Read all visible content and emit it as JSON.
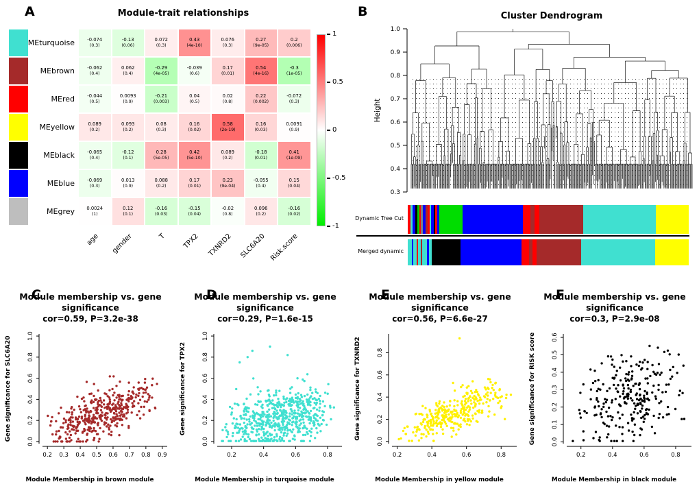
{
  "chart_data": [
    {
      "type": "heatmap",
      "panel": "A",
      "title": "Module-trait relationships",
      "rows": [
        {
          "name": "MEturquoise",
          "color": "#40E0D0"
        },
        {
          "name": "MEbrown",
          "color": "#A52A2A"
        },
        {
          "name": "MEred",
          "color": "#FF0000"
        },
        {
          "name": "MEyellow",
          "color": "#FFFF00"
        },
        {
          "name": "MEblack",
          "color": "#000000"
        },
        {
          "name": "MEblue",
          "color": "#0000FF"
        },
        {
          "name": "MEgrey",
          "color": "#BEBEBE"
        }
      ],
      "columns": [
        "age",
        "gender",
        "T",
        "TPX2",
        "TXNRD2",
        "SLC6A20",
        "Risk.score"
      ],
      "correlations": [
        [
          "-0.074",
          "-0.13",
          "0.072",
          "0.43",
          "0.076",
          "0.27",
          "0.2"
        ],
        [
          "-0.062",
          "0.062",
          "-0.29",
          "-0.039",
          "0.17",
          "0.54",
          "-0.3"
        ],
        [
          "-0.044",
          "0.0093",
          "-0.21",
          "0.04",
          "0.02",
          "0.22",
          "-0.072"
        ],
        [
          "0.089",
          "0.093",
          "0.08",
          "0.16",
          "0.58",
          "0.16",
          "0.0091"
        ],
        [
          "-0.065",
          "-0.12",
          "0.28",
          "0.42",
          "0.089",
          "-0.18",
          "0.41"
        ],
        [
          "-0.069",
          "0.013",
          "0.088",
          "0.17",
          "0.23",
          "-0.055",
          "0.15"
        ],
        [
          "0.0024",
          "0.12",
          "-0.16",
          "-0.15",
          "-0.02",
          "0.096",
          "-0.16"
        ]
      ],
      "pvalues": [
        [
          "(0.3)",
          "(0.06)",
          "(0.3)",
          "(4e-10)",
          "(0.3)",
          "(9e-05)",
          "(0.006)"
        ],
        [
          "(0.4)",
          "(0.4)",
          "(4e-05)",
          "(0.6)",
          "(0.01)",
          "(4e-16)",
          "(1e-05)"
        ],
        [
          "(0.5)",
          "(0.9)",
          "(0.003)",
          "(0.5)",
          "(0.8)",
          "(0.002)",
          "(0.3)"
        ],
        [
          "(0.2)",
          "(0.2)",
          "(0.3)",
          "(0.02)",
          "(2e-19)",
          "(0.03)",
          "(0.9)"
        ],
        [
          "(0.4)",
          "(0.1)",
          "(5e-05)",
          "(5e-10)",
          "(0.2)",
          "(0.01)",
          "(1e-09)"
        ],
        [
          "(0.3)",
          "(0.9)",
          "(0.2)",
          "(0.01)",
          "(9e-04)",
          "(0.4)",
          "(0.04)"
        ],
        [
          "(1)",
          "(0.1)",
          "(0.03)",
          "(0.04)",
          "(0.8)",
          "(0.2)",
          "(0.02)"
        ]
      ],
      "colorscale": {
        "max_color": "#FF0000",
        "mid_color": "#FFFFFF",
        "min_color": "#00EE00",
        "tick_labels": [
          "1",
          "0.5",
          "0",
          "-0.5",
          "-1"
        ],
        "tick_values": [
          1,
          0.5,
          0,
          -0.5,
          -1
        ]
      }
    },
    {
      "type": "line",
      "subtype": "dendrogram",
      "panel": "B",
      "title": "Cluster Dendrogram",
      "ylabel": "Height",
      "ylim": [
        0.3,
        1.0
      ],
      "yticks": [
        1.0,
        0.9,
        0.8,
        0.7,
        0.6,
        0.5,
        0.4,
        0.3
      ],
      "leaves": 300,
      "seed": 7,
      "bars": [
        {
          "label": "Dynamic Tree Cut",
          "segments": [
            {
              "c": "#FF0000",
              "w": 0.9
            },
            {
              "c": "#40E0D0",
              "w": 0.7
            },
            {
              "c": "#0000FF",
              "w": 0.8
            },
            {
              "c": "#000000",
              "w": 0.6
            },
            {
              "c": "#00CC00",
              "w": 0.7
            },
            {
              "c": "#FF0000",
              "w": 0.5
            },
            {
              "c": "#808080",
              "w": 0.6
            },
            {
              "c": "#0000FF",
              "w": 0.9
            },
            {
              "c": "#A52A2A",
              "w": 0.6
            },
            {
              "c": "#FF0000",
              "w": 0.7
            },
            {
              "c": "#40E0D0",
              "w": 0.5
            },
            {
              "c": "#0000FF",
              "w": 0.7
            },
            {
              "c": "#000000",
              "w": 0.5
            },
            {
              "c": "#FF0000",
              "w": 0.6
            },
            {
              "c": "#0000FF",
              "w": 0.7
            },
            {
              "c": "#00DD00",
              "w": 7.5
            },
            {
              "c": "#0000FF",
              "w": 19
            },
            {
              "c": "#FF0000",
              "w": 2.5
            },
            {
              "c": "#A52A2A",
              "w": 1.2
            },
            {
              "c": "#FF0000",
              "w": 1.5
            },
            {
              "c": "#A52A2A",
              "w": 14
            },
            {
              "c": "#40E0D0",
              "w": 23
            },
            {
              "c": "#FFFF00",
              "w": 10.5
            }
          ]
        },
        {
          "label": "Merged dynamic",
          "segments": [
            {
              "c": "#40E0D0",
              "w": 1.2
            },
            {
              "c": "#0000FF",
              "w": 0.6
            },
            {
              "c": "#40E0D0",
              "w": 1.0
            },
            {
              "c": "#FF0000",
              "w": 0.5
            },
            {
              "c": "#40E0D0",
              "w": 0.8
            },
            {
              "c": "#A52A2A",
              "w": 0.5
            },
            {
              "c": "#40E0D0",
              "w": 1.4
            },
            {
              "c": "#0000FF",
              "w": 0.6
            },
            {
              "c": "#40E0D0",
              "w": 0.9
            },
            {
              "c": "#000000",
              "w": 9.0
            },
            {
              "c": "#0000FF",
              "w": 19
            },
            {
              "c": "#FF0000",
              "w": 2.5
            },
            {
              "c": "#A52A2A",
              "w": 1.0
            },
            {
              "c": "#FF0000",
              "w": 1.3
            },
            {
              "c": "#A52A2A",
              "w": 14
            },
            {
              "c": "#40E0D0",
              "w": 23
            },
            {
              "c": "#FFFF00",
              "w": 10.5
            }
          ]
        }
      ]
    },
    {
      "type": "scatter",
      "panel": "C",
      "title_line1": "Module membership vs. gene",
      "title_line2": "significance",
      "subtitle": "cor=0.59, P=3.2e-38",
      "xlabel": "Module Membership in brown module",
      "ylabel": "Gene significance for SLC6A20",
      "point_color": "#A52A2A",
      "cor": 0.59,
      "xlim": [
        0.17,
        0.93
      ],
      "ylim": [
        -0.02,
        1.02
      ],
      "xticks": [
        0.2,
        0.3,
        0.4,
        0.5,
        0.6,
        0.7,
        0.8,
        0.9
      ],
      "yticks": [
        0.0,
        0.2,
        0.4,
        0.6,
        0.8,
        1.0
      ],
      "n_points": 420,
      "seed": 11,
      "gen": {
        "intercept": -0.07,
        "slope": 0.62,
        "sigma": 0.105,
        "x_min": 0.18,
        "x_range": 0.71,
        "y_clip": [
          0,
          1
        ]
      },
      "extra_points": []
    },
    {
      "type": "scatter",
      "panel": "D",
      "title_line1": "Module membership vs. gene",
      "title_line2": "significance",
      "subtitle": "cor=0.29, P=1.6e-15",
      "xlabel": "Module Membership in turquoise module",
      "ylabel": "Gene significance for TPX2",
      "point_color": "#40E0D0",
      "cor": 0.29,
      "xlim": [
        0.11,
        0.89
      ],
      "ylim": [
        -0.02,
        1.02
      ],
      "xticks": [
        0.2,
        0.4,
        0.6,
        0.8
      ],
      "yticks": [
        0.0,
        0.2,
        0.4,
        0.6,
        0.8,
        1.0
      ],
      "n_points": 620,
      "seed": 22,
      "gen": {
        "intercept": 0.07,
        "slope": 0.3,
        "sigma": 0.13,
        "x_min": 0.13,
        "x_range": 0.72,
        "y_clip": [
          0.005,
          0.98
        ]
      },
      "extra_points": [
        [
          0.33,
          0.86
        ],
        [
          0.3,
          0.8
        ],
        [
          0.44,
          0.9
        ],
        [
          0.55,
          0.82
        ],
        [
          0.25,
          0.75
        ]
      ]
    },
    {
      "type": "scatter",
      "panel": "E",
      "title_line1": "Module membership vs. gene",
      "title_line2": "significance",
      "subtitle": "cor=0.56, P=6.6e-27",
      "xlabel": "Module Membership in yellow module",
      "ylabel": "Gene significance for TXNRD2",
      "point_color": "#FFF000",
      "cor": 0.56,
      "xlim": [
        0.17,
        0.89
      ],
      "ylim": [
        -0.02,
        0.97
      ],
      "xticks": [
        0.2,
        0.4,
        0.6,
        0.8
      ],
      "yticks": [
        0.0,
        0.2,
        0.4,
        0.6,
        0.8
      ],
      "n_points": 330,
      "seed": 33,
      "gen": {
        "intercept": -0.03,
        "slope": 0.55,
        "sigma": 0.085,
        "x_min": 0.2,
        "x_range": 0.66,
        "y_clip": [
          0.005,
          0.95
        ]
      },
      "extra_points": [
        [
          0.56,
          0.93
        ],
        [
          0.21,
          0.02
        ]
      ]
    },
    {
      "type": "scatter",
      "panel": "F",
      "title_line1": "Module membership vs. gene",
      "title_line2": "significance",
      "subtitle": "cor=0.3, P=2.9e-08",
      "xlabel": "Module Membership in black module",
      "ylabel": "Gene significance for  RISK score",
      "point_color": "#000000",
      "cor": 0.3,
      "xlim": [
        0.11,
        0.9
      ],
      "ylim": [
        -0.01,
        0.62
      ],
      "xticks": [
        0.2,
        0.4,
        0.6,
        0.8
      ],
      "yticks": [
        0.0,
        0.1,
        0.2,
        0.3,
        0.4,
        0.5,
        0.6
      ],
      "n_points": 265,
      "seed": 44,
      "gen": {
        "intercept": 0.1,
        "slope": 0.28,
        "sigma": 0.115,
        "x_min": 0.13,
        "x_range": 0.74,
        "y_clip": [
          0.005,
          0.6
        ]
      },
      "extra_points": []
    }
  ]
}
